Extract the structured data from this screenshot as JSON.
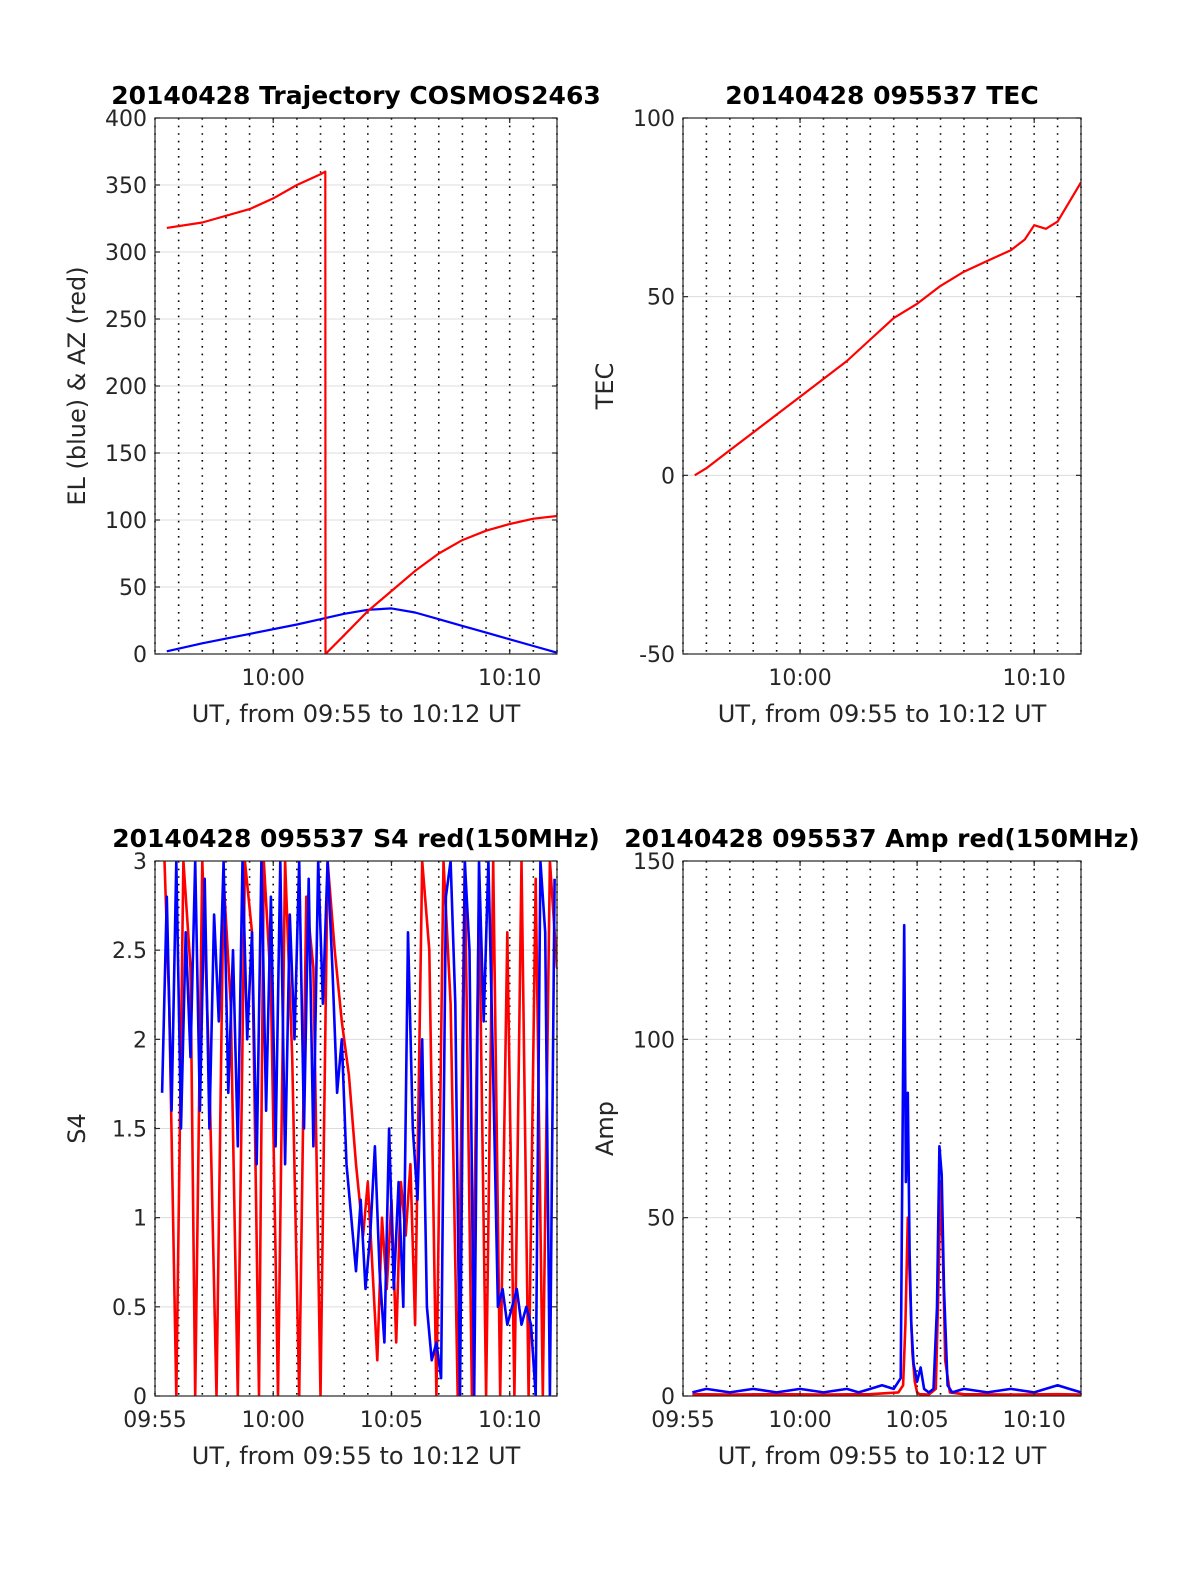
{
  "figure": {
    "background": "#ffffff"
  },
  "colors": {
    "red": "#ff0000",
    "blue": "#0000ff"
  },
  "chart_data": [
    {
      "type": "line",
      "title": "20140428 Trajectory COSMOS2463",
      "xlabel": "UT, from 09:55 to 10:12 UT",
      "ylabel": "EL (blue) & AZ (red)",
      "xlim_minutes_after_0955": [
        0,
        17
      ],
      "ylim": [
        0,
        400
      ],
      "yticks": [
        0,
        50,
        100,
        150,
        200,
        250,
        300,
        350,
        400
      ],
      "xticks": [
        {
          "min": 5,
          "label": "10:00"
        },
        {
          "min": 15,
          "label": "10:10"
        }
      ],
      "grid": true,
      "series": [
        {
          "color": "#0000ff",
          "x": [
            0.5,
            2,
            4,
            6,
            7,
            8,
            9,
            10,
            11,
            12,
            13,
            14,
            15,
            16,
            17
          ],
          "y": [
            2,
            8,
            15,
            22,
            26,
            30,
            33,
            34,
            31,
            26,
            21,
            16,
            11,
            6,
            1
          ]
        },
        {
          "color": "#ff0000",
          "x": [
            0.5,
            2,
            4,
            5,
            6,
            7,
            7.2,
            7.21,
            8,
            9,
            10,
            11,
            12,
            13,
            14,
            15,
            16,
            17
          ],
          "y": [
            318,
            322,
            332,
            340,
            350,
            358,
            360,
            0,
            14,
            32,
            47,
            62,
            75,
            85,
            92,
            97,
            101,
            103
          ]
        }
      ]
    },
    {
      "type": "line",
      "title": "20140428 095537 TEC",
      "xlabel": "UT, from 09:55 to 10:12 UT",
      "ylabel": "TEC",
      "xlim_minutes_after_0955": [
        0,
        17
      ],
      "ylim": [
        -50,
        100
      ],
      "yticks": [
        -50,
        0,
        50,
        100
      ],
      "xticks": [
        {
          "min": 5,
          "label": "10:00"
        },
        {
          "min": 15,
          "label": "10:10"
        }
      ],
      "grid": true,
      "series": [
        {
          "color": "#ff0000",
          "x": [
            0.5,
            1,
            2,
            3,
            4,
            5,
            6,
            7,
            8,
            9,
            10,
            11,
            12,
            13,
            14,
            14.6,
            15,
            15.5,
            16,
            17
          ],
          "y": [
            0,
            2,
            7,
            12,
            17,
            22,
            27,
            32,
            38,
            44,
            48,
            53,
            57,
            60,
            63,
            66,
            70,
            69,
            71,
            82
          ]
        }
      ]
    },
    {
      "type": "line",
      "title": "20140428 095537 S4 red(150MHz)",
      "xlabel": "UT, from 09:55 to 10:12 UT",
      "ylabel": "S4",
      "xlim_minutes_after_0955": [
        0,
        17
      ],
      "ylim": [
        0,
        3
      ],
      "yticks": [
        0,
        0.5,
        1,
        1.5,
        2,
        2.5,
        3
      ],
      "xticks": [
        {
          "min": 0,
          "label": "09:55"
        },
        {
          "min": 5,
          "label": "10:00"
        },
        {
          "min": 10,
          "label": "10:05"
        },
        {
          "min": 15,
          "label": "10:10"
        }
      ],
      "grid": true,
      "series": [
        {
          "color": "#ff0000",
          "x": [
            0.4,
            0.6,
            0.9,
            1.2,
            1.5,
            1.7,
            2.0,
            2.3,
            2.6,
            2.9,
            3.2,
            3.5,
            3.8,
            4.1,
            4.4,
            4.6,
            4.9,
            5.2,
            5.5,
            5.8,
            6.1,
            6.4,
            6.7,
            7.0,
            7.3,
            7.6,
            7.9,
            8.2,
            8.5,
            8.8,
            9.0,
            9.2,
            9.4,
            9.6,
            9.8,
            10.0,
            10.2,
            10.4,
            10.6,
            10.8,
            11.0,
            11.3,
            11.6,
            11.9,
            12.2,
            12.5,
            12.8,
            13.1,
            13.4,
            13.7,
            14.0,
            14.3,
            14.6,
            14.9,
            15.2,
            15.5,
            15.8,
            16.1,
            16.4,
            16.7,
            17.0
          ],
          "y": [
            3.0,
            2.2,
            0.0,
            3.0,
            2.4,
            0.0,
            3.0,
            1.8,
            0.0,
            2.9,
            2.2,
            0.0,
            3.0,
            2.6,
            0.0,
            3.0,
            2.3,
            0.0,
            3.0,
            1.9,
            0.0,
            2.8,
            2.4,
            0.0,
            3.0,
            2.5,
            2.1,
            1.8,
            1.3,
            0.9,
            1.2,
            0.7,
            0.2,
            1.0,
            0.6,
            1.1,
            0.3,
            1.2,
            0.9,
            1.3,
            0.4,
            3.0,
            2.5,
            0.0,
            3.0,
            2.2,
            0.0,
            3.0,
            0.0,
            2.8,
            0.0,
            3.0,
            0.0,
            2.6,
            0.0,
            3.0,
            0.0,
            2.9,
            0.0,
            3.0,
            2.4
          ]
        },
        {
          "color": "#0000ff",
          "x": [
            0.3,
            0.5,
            0.7,
            0.9,
            1.1,
            1.3,
            1.5,
            1.7,
            1.9,
            2.1,
            2.3,
            2.5,
            2.7,
            2.9,
            3.1,
            3.3,
            3.5,
            3.7,
            3.9,
            4.1,
            4.3,
            4.5,
            4.7,
            4.9,
            5.1,
            5.3,
            5.5,
            5.7,
            5.9,
            6.1,
            6.3,
            6.5,
            6.7,
            6.9,
            7.1,
            7.3,
            7.5,
            7.7,
            7.9,
            8.1,
            8.3,
            8.5,
            8.7,
            8.9,
            9.1,
            9.3,
            9.5,
            9.7,
            9.9,
            10.1,
            10.3,
            10.5,
            10.7,
            10.9,
            11.1,
            11.3,
            11.5,
            11.7,
            11.9,
            12.1,
            12.3,
            12.5,
            12.7,
            12.9,
            13.1,
            13.3,
            13.5,
            13.7,
            13.9,
            14.1,
            14.3,
            14.5,
            14.7,
            14.9,
            15.1,
            15.3,
            15.5,
            15.7,
            15.9,
            16.1,
            16.3,
            16.5,
            16.7,
            16.9
          ],
          "y": [
            1.7,
            2.8,
            1.6,
            3.0,
            1.5,
            2.6,
            1.9,
            3.0,
            1.6,
            2.9,
            1.5,
            2.7,
            2.1,
            3.0,
            1.7,
            2.5,
            1.4,
            3.0,
            2.0,
            2.6,
            1.3,
            3.0,
            1.6,
            2.8,
            1.4,
            3.0,
            1.3,
            2.7,
            2.0,
            3.0,
            1.5,
            2.9,
            1.4,
            3.0,
            2.2,
            3.0,
            2.4,
            1.7,
            2.0,
            1.3,
            1.0,
            0.7,
            1.1,
            0.6,
            0.9,
            1.4,
            0.7,
            0.3,
            1.5,
            0.6,
            1.2,
            0.5,
            2.6,
            1.5,
            1.1,
            2.0,
            0.5,
            0.2,
            0.3,
            0.1,
            2.8,
            3.0,
            2.2,
            0.0,
            3.0,
            2.5,
            0.0,
            3.0,
            2.1,
            3.0,
            1.8,
            0.5,
            0.6,
            0.4,
            0.5,
            0.6,
            0.4,
            0.5,
            0.4,
            0.0,
            3.0,
            2.6,
            0.0,
            2.9
          ]
        }
      ]
    },
    {
      "type": "line",
      "title": "20140428 095537 Amp red(150MHz)",
      "xlabel": "UT, from 09:55 to 10:12 UT",
      "ylabel": "Amp",
      "xlim_minutes_after_0955": [
        0,
        17
      ],
      "ylim": [
        0,
        150
      ],
      "yticks": [
        0,
        50,
        100,
        150
      ],
      "xticks": [
        {
          "min": 0,
          "label": "09:55"
        },
        {
          "min": 5,
          "label": "10:00"
        },
        {
          "min": 10,
          "label": "10:05"
        },
        {
          "min": 15,
          "label": "10:10"
        }
      ],
      "grid": true,
      "series": [
        {
          "color": "#ff0000",
          "x": [
            0.4,
            2,
            4,
            6,
            8,
            9.2,
            9.4,
            9.5,
            9.6,
            9.7,
            9.8,
            9.9,
            10.0,
            10.1,
            10.5,
            10.8,
            10.9,
            11.0,
            11.1,
            11.2,
            11.4,
            12,
            14,
            16,
            17
          ],
          "y": [
            0.5,
            0.4,
            0.5,
            0.4,
            0.5,
            1,
            3,
            20,
            50,
            30,
            12,
            4,
            1,
            0.5,
            0.4,
            2,
            28,
            60,
            40,
            10,
            1,
            0.5,
            0.4,
            0.5,
            0.4
          ]
        },
        {
          "color": "#0000ff",
          "x": [
            0.4,
            1,
            2,
            3,
            4,
            5,
            6,
            7,
            7.5,
            8,
            8.5,
            9.0,
            9.3,
            9.45,
            9.52,
            9.6,
            9.68,
            9.75,
            9.85,
            10.0,
            10.15,
            10.3,
            10.5,
            10.7,
            10.85,
            10.95,
            11.05,
            11.15,
            11.3,
            11.5,
            12,
            13,
            14,
            15,
            16,
            16.5,
            17
          ],
          "y": [
            1,
            2,
            1,
            2,
            1,
            2,
            1,
            2,
            1,
            2,
            3,
            2,
            5,
            132,
            60,
            85,
            40,
            20,
            9,
            4,
            8,
            2,
            1,
            2,
            25,
            70,
            62,
            30,
            3,
            1,
            2,
            1,
            2,
            1,
            3,
            2,
            1
          ]
        }
      ]
    }
  ]
}
